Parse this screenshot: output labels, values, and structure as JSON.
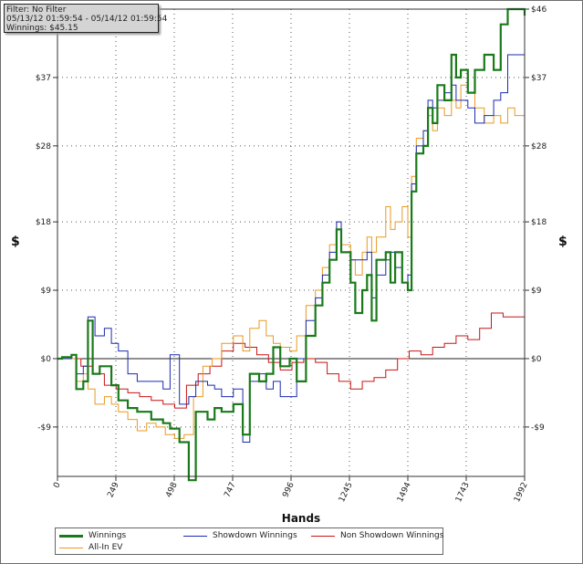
{
  "info_box": {
    "filter": "Filter: No Filter",
    "range": "05/13/12 01:59:54 - 05/14/12 01:59:54",
    "winnings": "Winnings: $45.15"
  },
  "chart_data": {
    "type": "line",
    "xlabel": "Hands",
    "ylabel": "$",
    "xlim": [
      0,
      1992
    ],
    "ylim": [
      -15.5,
      46
    ],
    "x_ticks": [
      0,
      249,
      498,
      747,
      996,
      1245,
      1494,
      1743,
      1992
    ],
    "y_ticks": [
      -9,
      0,
      9,
      18,
      28,
      37,
      46
    ],
    "y_tick_labels": [
      "-$9",
      "$0",
      "$9",
      "$18",
      "$28",
      "$37",
      "$46"
    ],
    "grid": true,
    "legend_position": "bottom-left",
    "series": [
      {
        "name": "Winnings",
        "color": "#1a7a1a",
        "points": [
          [
            0,
            0
          ],
          [
            20,
            0.2
          ],
          [
            60,
            0.5
          ],
          [
            80,
            -4
          ],
          [
            110,
            -3
          ],
          [
            130,
            5
          ],
          [
            150,
            -2
          ],
          [
            180,
            -1
          ],
          [
            230,
            -3.5
          ],
          [
            260,
            -5.5
          ],
          [
            300,
            -6.5
          ],
          [
            340,
            -7
          ],
          [
            400,
            -8
          ],
          [
            450,
            -8.5
          ],
          [
            480,
            -9.2
          ],
          [
            520,
            -11
          ],
          [
            560,
            -16
          ],
          [
            590,
            -7
          ],
          [
            640,
            -8
          ],
          [
            670,
            -6.5
          ],
          [
            700,
            -7
          ],
          [
            750,
            -6
          ],
          [
            790,
            -10
          ],
          [
            820,
            -2
          ],
          [
            860,
            -3
          ],
          [
            890,
            -2
          ],
          [
            920,
            1.5
          ],
          [
            950,
            -1
          ],
          [
            990,
            0
          ],
          [
            1020,
            -3
          ],
          [
            1060,
            3
          ],
          [
            1100,
            7
          ],
          [
            1130,
            10
          ],
          [
            1160,
            13
          ],
          [
            1190,
            17
          ],
          [
            1210,
            14
          ],
          [
            1250,
            10
          ],
          [
            1270,
            6
          ],
          [
            1300,
            9
          ],
          [
            1320,
            11
          ],
          [
            1340,
            5
          ],
          [
            1360,
            13
          ],
          [
            1400,
            14
          ],
          [
            1420,
            10
          ],
          [
            1440,
            14
          ],
          [
            1470,
            10
          ],
          [
            1494,
            9
          ],
          [
            1510,
            22
          ],
          [
            1530,
            27
          ],
          [
            1560,
            28
          ],
          [
            1580,
            33
          ],
          [
            1600,
            31
          ],
          [
            1620,
            36
          ],
          [
            1650,
            34
          ],
          [
            1680,
            40
          ],
          [
            1700,
            37
          ],
          [
            1720,
            38
          ],
          [
            1750,
            35
          ],
          [
            1780,
            38
          ],
          [
            1820,
            40
          ],
          [
            1860,
            38
          ],
          [
            1890,
            44
          ],
          [
            1920,
            46
          ],
          [
            1950,
            46
          ],
          [
            1992,
            45.15
          ]
        ]
      },
      {
        "name": "Showdown Winnings",
        "color": "#1a2ab0",
        "points": [
          [
            0,
            0
          ],
          [
            60,
            0.5
          ],
          [
            80,
            -2
          ],
          [
            110,
            -1
          ],
          [
            130,
            5.5
          ],
          [
            160,
            3
          ],
          [
            200,
            4
          ],
          [
            230,
            2
          ],
          [
            260,
            1
          ],
          [
            300,
            -2
          ],
          [
            340,
            -3
          ],
          [
            400,
            -3
          ],
          [
            450,
            -4
          ],
          [
            480,
            0.5
          ],
          [
            520,
            -6
          ],
          [
            560,
            -5
          ],
          [
            590,
            -3
          ],
          [
            640,
            -3.5
          ],
          [
            670,
            -4
          ],
          [
            700,
            -5
          ],
          [
            750,
            -4
          ],
          [
            790,
            -11
          ],
          [
            820,
            -3
          ],
          [
            860,
            -2
          ],
          [
            890,
            -4
          ],
          [
            920,
            -3
          ],
          [
            950,
            -5
          ],
          [
            990,
            -5
          ],
          [
            1020,
            0
          ],
          [
            1060,
            5
          ],
          [
            1100,
            8
          ],
          [
            1130,
            11
          ],
          [
            1160,
            14
          ],
          [
            1190,
            18
          ],
          [
            1210,
            14
          ],
          [
            1250,
            13
          ],
          [
            1270,
            13
          ],
          [
            1300,
            13
          ],
          [
            1320,
            14
          ],
          [
            1340,
            8
          ],
          [
            1360,
            11
          ],
          [
            1400,
            13
          ],
          [
            1420,
            14
          ],
          [
            1440,
            12
          ],
          [
            1470,
            10
          ],
          [
            1494,
            11
          ],
          [
            1510,
            23
          ],
          [
            1530,
            28
          ],
          [
            1560,
            30
          ],
          [
            1580,
            34
          ],
          [
            1600,
            33
          ],
          [
            1620,
            34
          ],
          [
            1650,
            35
          ],
          [
            1680,
            36
          ],
          [
            1700,
            34
          ],
          [
            1720,
            34
          ],
          [
            1750,
            33
          ],
          [
            1780,
            31
          ],
          [
            1820,
            32
          ],
          [
            1860,
            34
          ],
          [
            1890,
            35
          ],
          [
            1920,
            40
          ],
          [
            1950,
            40
          ],
          [
            1992,
            40
          ]
        ]
      },
      {
        "name": "Non Showdown Winnings",
        "color": "#c81414",
        "points": [
          [
            0,
            0
          ],
          [
            60,
            0
          ],
          [
            100,
            -1
          ],
          [
            150,
            -2
          ],
          [
            200,
            -3.5
          ],
          [
            250,
            -4
          ],
          [
            300,
            -4.5
          ],
          [
            350,
            -5
          ],
          [
            400,
            -5.5
          ],
          [
            450,
            -6
          ],
          [
            500,
            -6.5
          ],
          [
            550,
            -3.5
          ],
          [
            600,
            -2
          ],
          [
            650,
            -1
          ],
          [
            700,
            1
          ],
          [
            750,
            2
          ],
          [
            800,
            1.5
          ],
          [
            850,
            0.5
          ],
          [
            900,
            -0.5
          ],
          [
            950,
            -1.5
          ],
          [
            1000,
            -0.5
          ],
          [
            1050,
            0
          ],
          [
            1100,
            -0.5
          ],
          [
            1150,
            -2
          ],
          [
            1200,
            -3
          ],
          [
            1250,
            -4
          ],
          [
            1300,
            -3
          ],
          [
            1350,
            -2.5
          ],
          [
            1400,
            -1.5
          ],
          [
            1450,
            0
          ],
          [
            1500,
            1
          ],
          [
            1550,
            0.5
          ],
          [
            1600,
            1.5
          ],
          [
            1650,
            2
          ],
          [
            1700,
            3
          ],
          [
            1750,
            2.5
          ],
          [
            1800,
            4
          ],
          [
            1850,
            6
          ],
          [
            1900,
            5.5
          ],
          [
            1950,
            5.5
          ],
          [
            1992,
            5
          ]
        ]
      },
      {
        "name": "All-In EV",
        "color": "#e89a22",
        "points": [
          [
            0,
            0
          ],
          [
            60,
            0
          ],
          [
            80,
            -3
          ],
          [
            110,
            -2
          ],
          [
            130,
            -4
          ],
          [
            160,
            -6
          ],
          [
            200,
            -5
          ],
          [
            230,
            -6
          ],
          [
            260,
            -7
          ],
          [
            300,
            -8
          ],
          [
            340,
            -9.5
          ],
          [
            380,
            -8.5
          ],
          [
            420,
            -9
          ],
          [
            460,
            -10
          ],
          [
            500,
            -10.5
          ],
          [
            540,
            -10
          ],
          [
            580,
            -5
          ],
          [
            620,
            -1
          ],
          [
            660,
            0
          ],
          [
            700,
            2
          ],
          [
            750,
            3
          ],
          [
            790,
            1
          ],
          [
            820,
            4
          ],
          [
            860,
            5
          ],
          [
            890,
            3
          ],
          [
            920,
            2
          ],
          [
            950,
            1.5
          ],
          [
            990,
            1
          ],
          [
            1020,
            3
          ],
          [
            1060,
            7
          ],
          [
            1100,
            9
          ],
          [
            1130,
            12
          ],
          [
            1160,
            15
          ],
          [
            1190,
            18
          ],
          [
            1210,
            15
          ],
          [
            1250,
            13
          ],
          [
            1270,
            11
          ],
          [
            1300,
            14
          ],
          [
            1320,
            16
          ],
          [
            1340,
            14
          ],
          [
            1360,
            16
          ],
          [
            1400,
            20
          ],
          [
            1420,
            17
          ],
          [
            1440,
            18
          ],
          [
            1470,
            20
          ],
          [
            1494,
            16
          ],
          [
            1510,
            24
          ],
          [
            1530,
            29
          ],
          [
            1560,
            30
          ],
          [
            1580,
            32
          ],
          [
            1600,
            30
          ],
          [
            1620,
            33
          ],
          [
            1650,
            32
          ],
          [
            1680,
            34
          ],
          [
            1700,
            33
          ],
          [
            1720,
            36
          ],
          [
            1750,
            35
          ],
          [
            1780,
            33
          ],
          [
            1820,
            31
          ],
          [
            1860,
            32
          ],
          [
            1890,
            31
          ],
          [
            1920,
            33
          ],
          [
            1950,
            32
          ],
          [
            1992,
            32.5
          ]
        ]
      }
    ]
  }
}
